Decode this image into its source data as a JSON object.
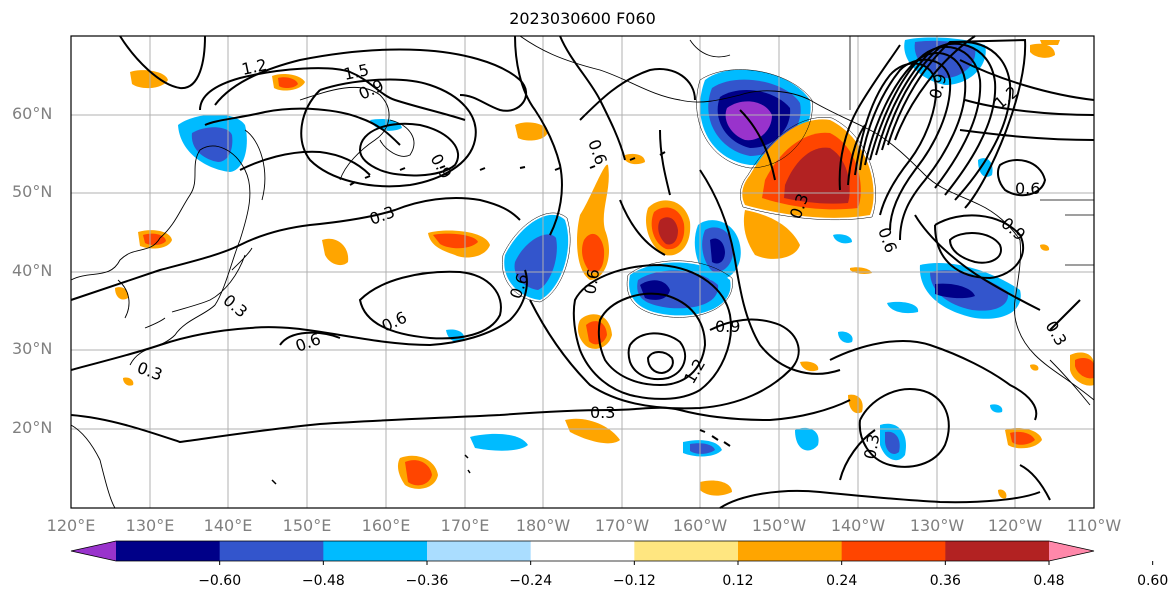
{
  "title": "2023030600 F060",
  "map": {
    "lat_labels": [
      "60°N",
      "50°N",
      "40°N",
      "30°N",
      "20°N"
    ],
    "lon_labels": [
      "120°E",
      "130°E",
      "140°E",
      "150°E",
      "160°E",
      "170°E",
      "180°W",
      "170°W",
      "160°W",
      "150°W",
      "140°W",
      "130°W",
      "120°W",
      "110°W"
    ],
    "contour_labels": [
      "1.2",
      "1.5",
      "0.9",
      "0.9",
      "0.6",
      "0.3",
      "0.3",
      "0.6",
      "0.6",
      "0.3",
      "0.3",
      "0.6",
      "0.9",
      "1.2",
      "0.3",
      "0.9",
      "0.6",
      "0.6",
      "0.3",
      "0.6",
      "0.9",
      "1.2",
      "0.3"
    ],
    "grid": true
  },
  "colorbar": {
    "ticks": [
      "−0.60",
      "−0.48",
      "−0.36",
      "−0.24",
      "−0.12",
      "0.12",
      "0.24",
      "0.36",
      "0.48",
      "0.60"
    ],
    "colors": [
      "#9933cc",
      "#000088",
      "#3355cc",
      "#00bbff",
      "#aaddff",
      "#ffffff",
      "#ffe680",
      "#ffa500",
      "#ff4500",
      "#b22222",
      "#ff88aa"
    ]
  }
}
